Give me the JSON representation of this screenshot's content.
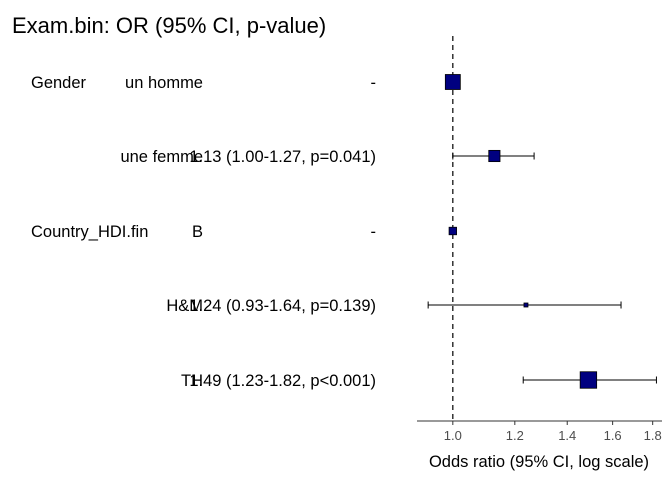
{
  "chart_data": {
    "type": "forest",
    "title": "Exam.bin: OR (95% CI, p-value)",
    "xlabel": "Odds ratio (95% CI, log scale)",
    "scale": "log",
    "xlim": [
      0.9,
      1.85
    ],
    "xticks": [
      1.0,
      1.2,
      1.4,
      1.6,
      1.8
    ],
    "xtick_labels": [
      "1.0",
      "1.2",
      "1.4",
      "1.6",
      "1.8"
    ],
    "reference_line": 1.0,
    "colors": {
      "marker": "#000080",
      "line": "#000000"
    },
    "rows": [
      {
        "variable": "Gender",
        "level": "un homme",
        "label": "-",
        "or": 1.0,
        "lower": null,
        "upper": null,
        "size": 1.0
      },
      {
        "variable": "",
        "level": "une femme",
        "label": "1.13 (1.00-1.27, p=0.041)",
        "or": 1.13,
        "lower": 1.0,
        "upper": 1.27,
        "size": 0.75
      },
      {
        "variable": "Country_HDI.fin",
        "level": "B",
        "label": "-",
        "or": 1.0,
        "lower": null,
        "upper": null,
        "size": 0.5
      },
      {
        "variable": "",
        "level": "H&M",
        "label": "1.24 (0.93-1.64, p=0.139)",
        "or": 1.24,
        "lower": 0.93,
        "upper": 1.64,
        "size": 0.25
      },
      {
        "variable": "",
        "level": "TH",
        "label": "1.49 (1.23-1.82, p<0.001)",
        "or": 1.49,
        "lower": 1.23,
        "upper": 1.82,
        "size": 1.1
      }
    ]
  }
}
